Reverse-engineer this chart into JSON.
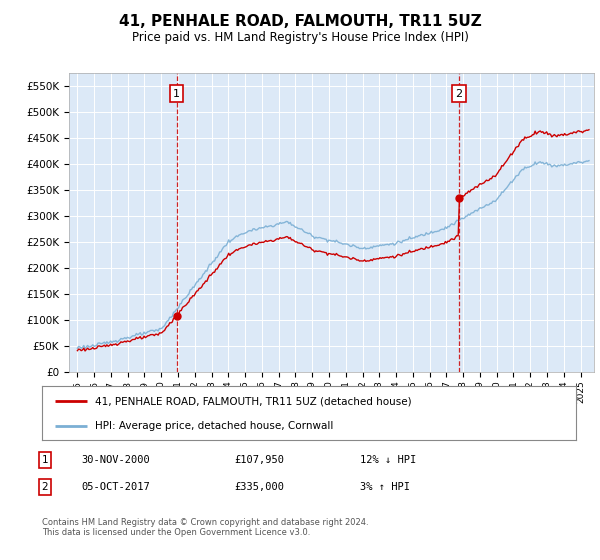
{
  "title": "41, PENHALE ROAD, FALMOUTH, TR11 5UZ",
  "subtitle": "Price paid vs. HM Land Registry's House Price Index (HPI)",
  "legend_line1": "41, PENHALE ROAD, FALMOUTH, TR11 5UZ (detached house)",
  "legend_line2": "HPI: Average price, detached house, Cornwall",
  "sale1_date": "30-NOV-2000",
  "sale1_price": "£107,950",
  "sale1_hpi": "12% ↓ HPI",
  "sale2_date": "05-OCT-2017",
  "sale2_price": "£335,000",
  "sale2_hpi": "3% ↑ HPI",
  "footer": "Contains HM Land Registry data © Crown copyright and database right 2024.\nThis data is licensed under the Open Government Licence v3.0.",
  "bg_color": "#dce9f7",
  "line_color_red": "#cc0000",
  "line_color_blue": "#7bafd4",
  "vline_color": "#cc0000",
  "ylim": [
    0,
    575000
  ],
  "yticks": [
    0,
    50000,
    100000,
    150000,
    200000,
    250000,
    300000,
    350000,
    400000,
    450000,
    500000,
    550000
  ],
  "sale1_x": 2000.917,
  "sale1_y": 107950,
  "sale2_x": 2017.75,
  "sale2_y": 335000,
  "xlim_left": 1994.5,
  "xlim_right": 2025.8
}
